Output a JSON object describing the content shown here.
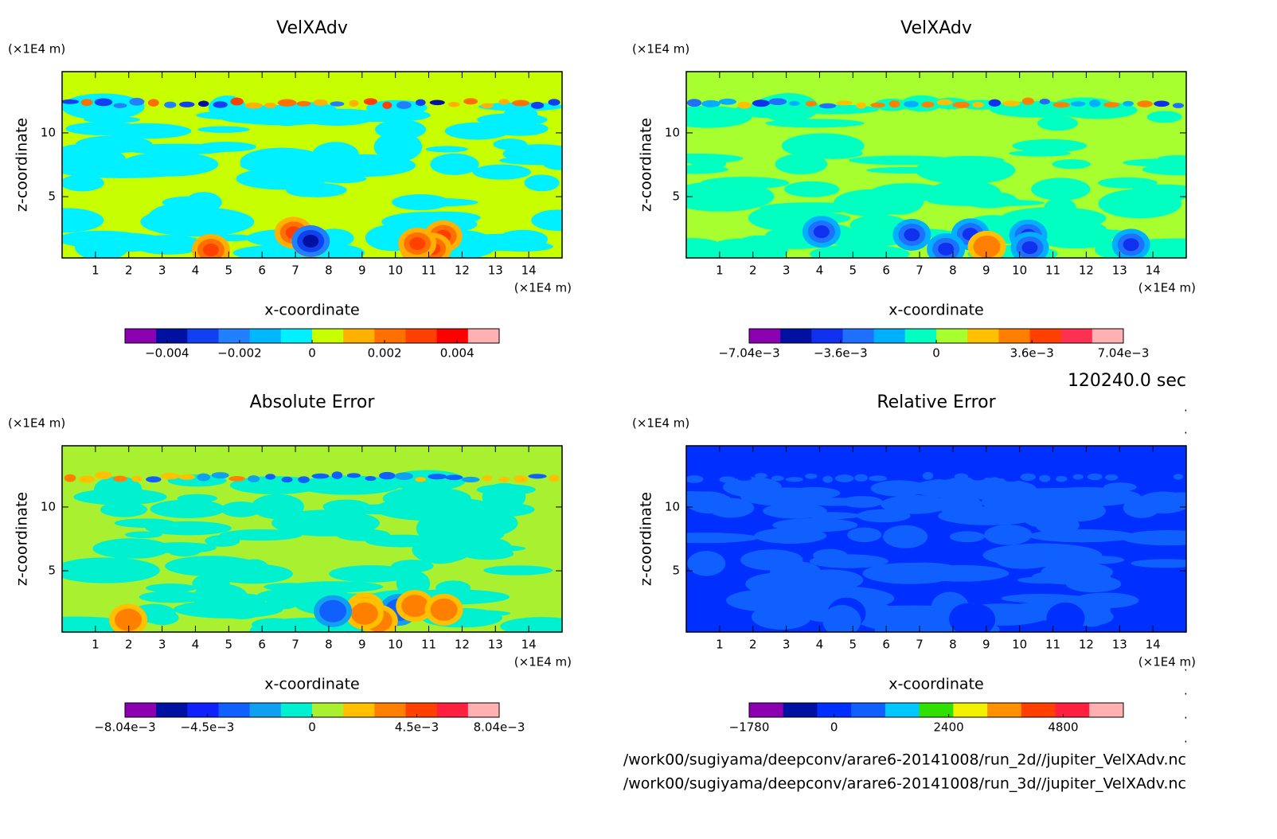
{
  "chart_data": [
    {
      "type": "contour",
      "title": "VelXAdv",
      "xlabel": "x-coordinate",
      "ylabel": "z-coordinate",
      "xunit": "(×1E4 m)",
      "yunit": "(×1E4 m)",
      "xlim": [
        0,
        15
      ],
      "ylim": [
        0.2,
        14.8
      ],
      "xticks": [
        1,
        2,
        3,
        4,
        5,
        6,
        7,
        8,
        9,
        10,
        11,
        12,
        13,
        14
      ],
      "yticks": [
        5,
        10
      ],
      "colors": [
        "#8b00b0",
        "#0010a0",
        "#1040f0",
        "#2080ff",
        "#00b8ff",
        "#00f0ff",
        "#c8ff00",
        "#ffb000",
        "#ff7000",
        "#ff4000",
        "#ff0000",
        "#ffb0b0"
      ],
      "clim": [
        -0.00516,
        0.00516
      ],
      "cticks": [
        {
          "value": -0.004,
          "label": "−0.004"
        },
        {
          "value": -0.002,
          "label": "−0.002"
        },
        0,
        0.002,
        0.004
      ]
    },
    {
      "type": "contour",
      "title": "VelXAdv",
      "xlabel": "x-coordinate",
      "ylabel": "z-coordinate",
      "xunit": "(×1E4 m)",
      "yunit": "(×1E4 m)",
      "xlim": [
        0,
        15
      ],
      "ylim": [
        0.2,
        14.8
      ],
      "xticks": [
        1,
        2,
        3,
        4,
        5,
        6,
        7,
        8,
        9,
        10,
        11,
        12,
        13,
        14
      ],
      "yticks": [
        5,
        10
      ],
      "colors": [
        "#8b00b0",
        "#0010a0",
        "#1030f0",
        "#2070ff",
        "#00b0ff",
        "#00ffc0",
        "#a8ff30",
        "#ffc000",
        "#ff8000",
        "#ff4000",
        "#ff3050",
        "#ffb0b0"
      ],
      "clim": [
        -0.00704,
        0.00704
      ],
      "cticks": [
        {
          "value": -0.00704,
          "label": "−7.04e−3"
        },
        {
          "value": -0.0036,
          "label": "−3.6e−3"
        },
        0,
        {
          "value": 0.0036,
          "label": "3.6e−3"
        },
        {
          "value": 0.00704,
          "label": "7.04e−3"
        }
      ]
    },
    {
      "type": "contour",
      "title": "Absolute Error",
      "xlabel": "x-coordinate",
      "ylabel": "z-coordinate",
      "xunit": "(×1E4 m)",
      "yunit": "(×1E4 m)",
      "xlim": [
        0,
        15
      ],
      "ylim": [
        0.2,
        14.8
      ],
      "xticks": [
        1,
        2,
        3,
        4,
        5,
        6,
        7,
        8,
        9,
        10,
        11,
        12,
        13,
        14
      ],
      "yticks": [
        5,
        10
      ],
      "colors": [
        "#8b00b0",
        "#0010a0",
        "#1020ff",
        "#1060ff",
        "#10a0f0",
        "#00f0d0",
        "#a8f030",
        "#ffc000",
        "#ff8000",
        "#ff4000",
        "#ff2040",
        "#ffb0b0"
      ],
      "clim": [
        -0.00804,
        0.00804
      ],
      "cticks": [
        {
          "value": -0.00804,
          "label": "−8.04e−3"
        },
        {
          "value": -0.0045,
          "label": "−4.5e−3"
        },
        0,
        {
          "value": 0.0045,
          "label": "4.5e−3"
        },
        {
          "value": 0.00804,
          "label": "8.04e−3"
        }
      ]
    },
    {
      "type": "contour",
      "title": "Relative Error",
      "xlabel": "x-coordinate",
      "ylabel": "z-coordinate",
      "xunit": "(×1E4 m)",
      "yunit": "(×1E4 m)",
      "xlim": [
        0,
        15
      ],
      "ylim": [
        0.2,
        14.8
      ],
      "xticks": [
        1,
        2,
        3,
        4,
        5,
        6,
        7,
        8,
        9,
        10,
        11,
        12,
        13,
        14
      ],
      "yticks": [
        5,
        10
      ],
      "colors": [
        "#8b00b0",
        "#0010a0",
        "#0030ff",
        "#1060ff",
        "#00c8ff",
        "#30e000",
        "#f0f000",
        "#ff9000",
        "#ff4000",
        "#ff2040",
        "#ffb0b0"
      ],
      "clim": [
        -1780,
        6060
      ],
      "cticks": [
        {
          "value": -1780,
          "label": "−1780"
        },
        0,
        2400,
        4800
      ]
    }
  ],
  "time_label": "120240.0 sec",
  "file_paths": [
    "/work00/sugiyama/deepconv/arare6-20141008/run_2d//jupiter_VelXAdv.nc",
    "/work00/sugiyama/deepconv/arare6-20141008/run_3d//jupiter_VelXAdv.nc"
  ],
  "dots": [
    ".",
    ".",
    ".",
    ".",
    ".",
    "."
  ]
}
